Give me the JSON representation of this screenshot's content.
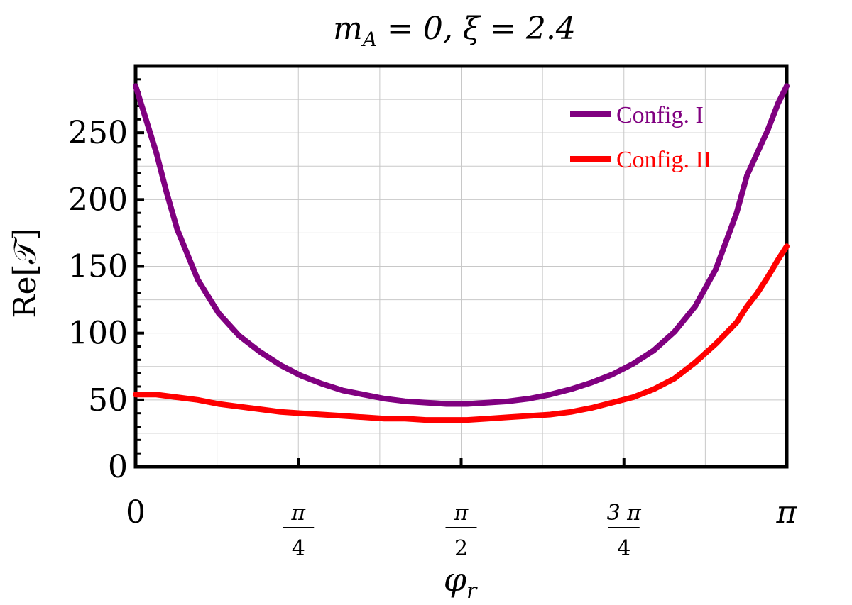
{
  "chart_data": {
    "type": "line",
    "title": "m_A = 0,  ξ = 2.4",
    "title_parts": {
      "m": "m",
      "sub": "A",
      "rest": " = 0,  ξ = 2.4"
    },
    "xlabel": "φ_r",
    "xlabel_parts": {
      "phi": "φ",
      "sub": "r"
    },
    "ylabel": "Re[𝒯]",
    "xlim": [
      0,
      3.14159265
    ],
    "ylim": [
      0,
      300
    ],
    "grid": true,
    "legend_position": "top-right",
    "y_ticks": [
      {
        "value": 0,
        "label": "0"
      },
      {
        "value": 50,
        "label": "50"
      },
      {
        "value": 100,
        "label": "100"
      },
      {
        "value": 150,
        "label": "150"
      },
      {
        "value": 200,
        "label": "200"
      },
      {
        "value": 250,
        "label": "250"
      }
    ],
    "x_ticks": [
      {
        "value": 0,
        "label": "0"
      },
      {
        "value": 0.785398,
        "num": "π",
        "den": "4"
      },
      {
        "value": 1.570796,
        "num": "π",
        "den": "2"
      },
      {
        "value": 2.356194,
        "num": "3 π",
        "den": "4"
      },
      {
        "value": 3.141593,
        "label": "π"
      }
    ],
    "series": [
      {
        "name": "Config. I",
        "color": "#800080",
        "points": [
          [
            0.0,
            285
          ],
          [
            0.05,
            260
          ],
          [
            0.1,
            235
          ],
          [
            0.15,
            205
          ],
          [
            0.2,
            178
          ],
          [
            0.3,
            140
          ],
          [
            0.4,
            115
          ],
          [
            0.5,
            98
          ],
          [
            0.6,
            86
          ],
          [
            0.7,
            76
          ],
          [
            0.8,
            68
          ],
          [
            0.9,
            62
          ],
          [
            1.0,
            57
          ],
          [
            1.1,
            54
          ],
          [
            1.2,
            51
          ],
          [
            1.3,
            49
          ],
          [
            1.4,
            48
          ],
          [
            1.5,
            47
          ],
          [
            1.6,
            47
          ],
          [
            1.7,
            48
          ],
          [
            1.8,
            49
          ],
          [
            1.9,
            51
          ],
          [
            2.0,
            54
          ],
          [
            2.1,
            58
          ],
          [
            2.2,
            63
          ],
          [
            2.3,
            69
          ],
          [
            2.4,
            77
          ],
          [
            2.5,
            87
          ],
          [
            2.6,
            101
          ],
          [
            2.7,
            120
          ],
          [
            2.8,
            148
          ],
          [
            2.9,
            190
          ],
          [
            2.95,
            218
          ],
          [
            3.0,
            235
          ],
          [
            3.05,
            252
          ],
          [
            3.1,
            272
          ],
          [
            3.1416,
            285
          ]
        ]
      },
      {
        "name": "Config. II",
        "color": "#ff0000",
        "points": [
          [
            0.0,
            54
          ],
          [
            0.1,
            54
          ],
          [
            0.2,
            52
          ],
          [
            0.3,
            50
          ],
          [
            0.4,
            47
          ],
          [
            0.5,
            45
          ],
          [
            0.6,
            43
          ],
          [
            0.7,
            41
          ],
          [
            0.8,
            40
          ],
          [
            0.9,
            39
          ],
          [
            1.0,
            38
          ],
          [
            1.1,
            37
          ],
          [
            1.2,
            36
          ],
          [
            1.3,
            36
          ],
          [
            1.4,
            35
          ],
          [
            1.5,
            35
          ],
          [
            1.6,
            35
          ],
          [
            1.7,
            36
          ],
          [
            1.8,
            37
          ],
          [
            1.9,
            38
          ],
          [
            2.0,
            39
          ],
          [
            2.1,
            41
          ],
          [
            2.2,
            44
          ],
          [
            2.3,
            48
          ],
          [
            2.4,
            52
          ],
          [
            2.5,
            58
          ],
          [
            2.6,
            66
          ],
          [
            2.7,
            78
          ],
          [
            2.8,
            92
          ],
          [
            2.9,
            108
          ],
          [
            2.95,
            120
          ],
          [
            3.0,
            130
          ],
          [
            3.05,
            142
          ],
          [
            3.1,
            155
          ],
          [
            3.1416,
            165
          ]
        ]
      }
    ]
  }
}
